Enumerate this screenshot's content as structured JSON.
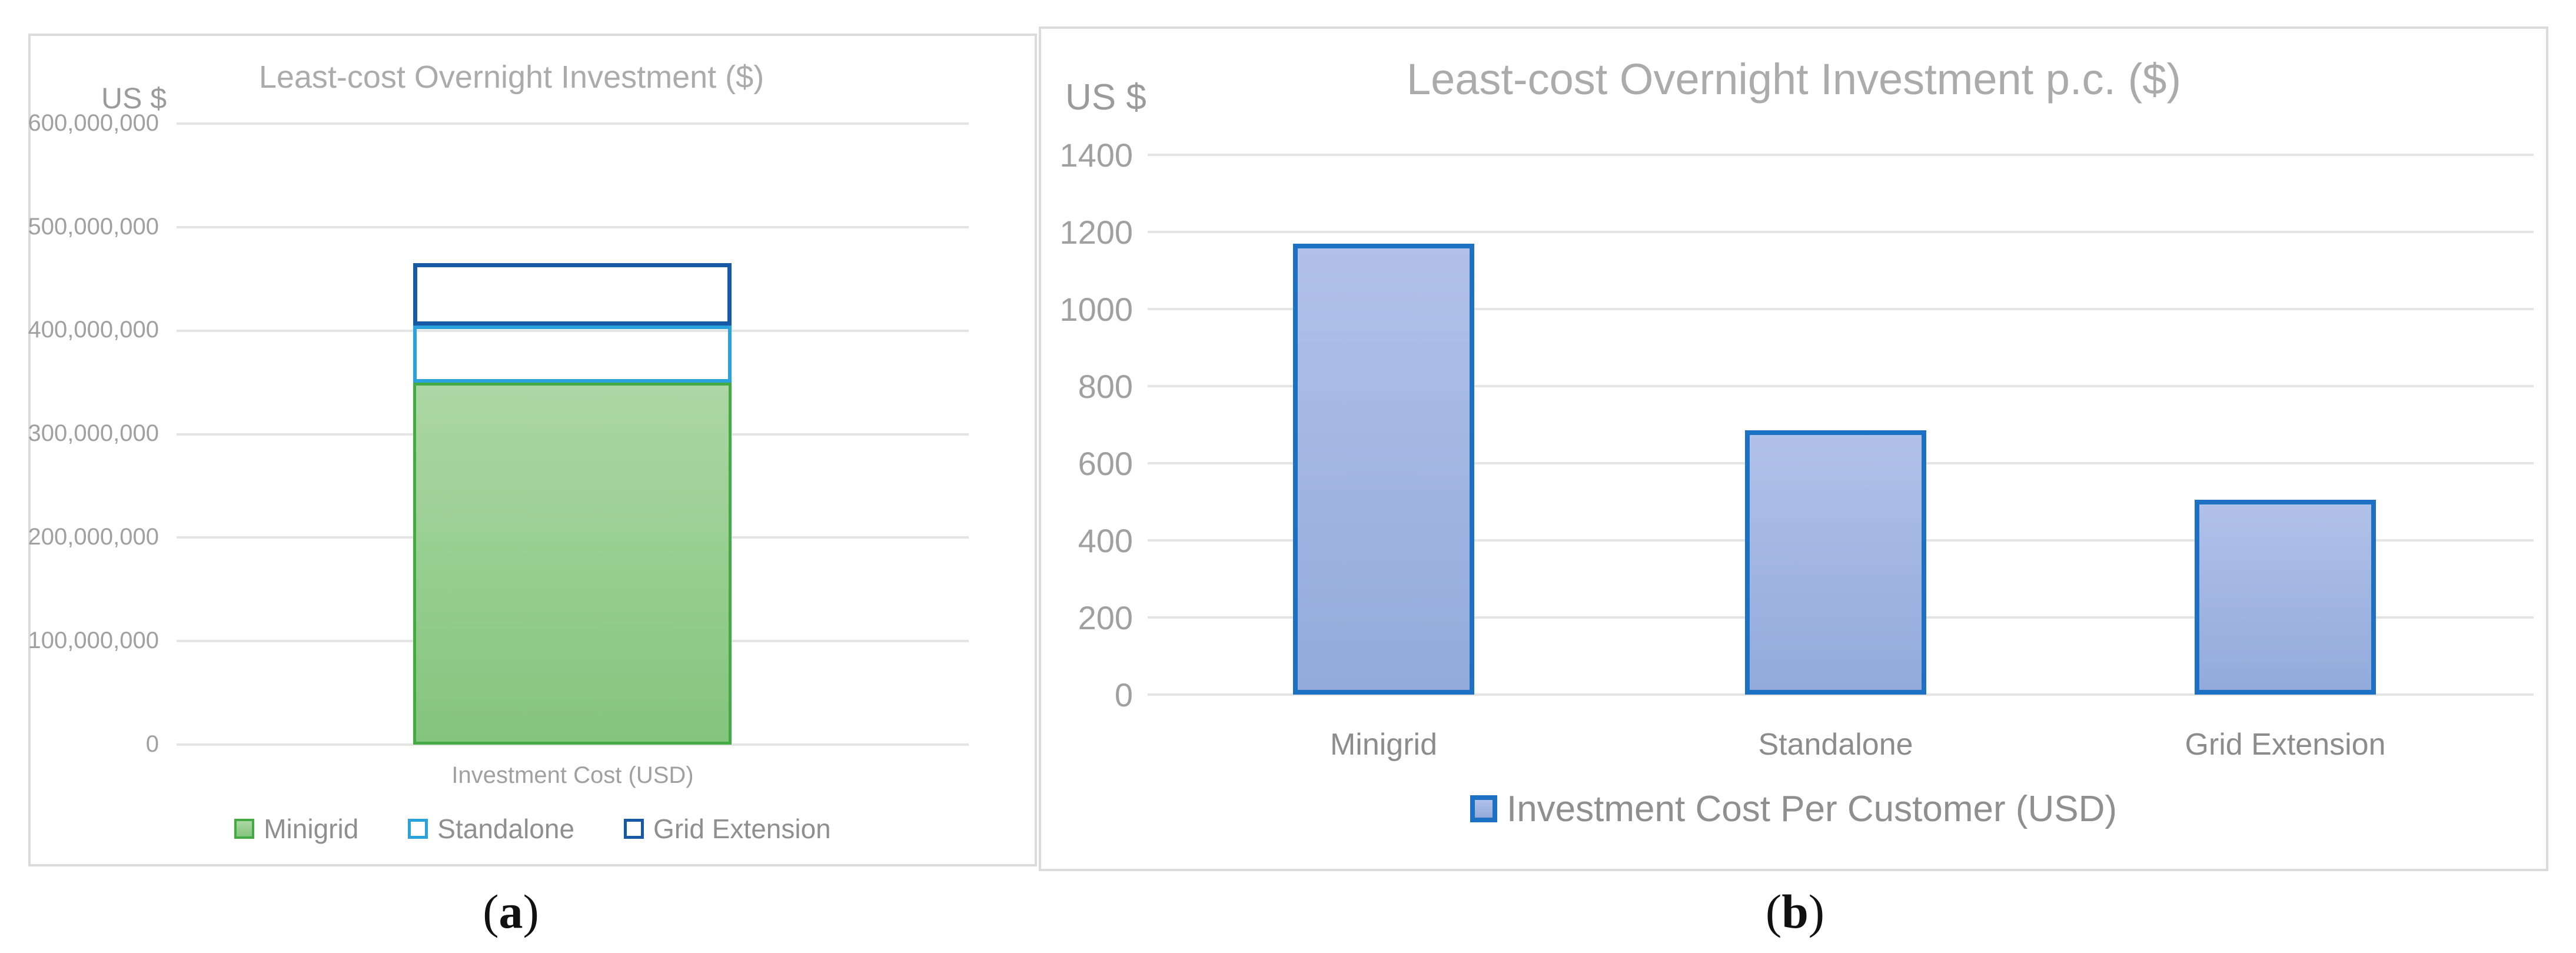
{
  "page": {
    "background": "#FFFFFF"
  },
  "colors": {
    "panel_border": "#DBDBDB",
    "gridline": "#E4E4E4",
    "title_text": "#ABABAB",
    "tick_text": "#A0A0A0",
    "legend_text": "#8F8F8F",
    "minigrid_green_border": "#43AB43",
    "standalone_blue_border": "#2AA2DE",
    "grid_extension_navy_border": "#1759A4",
    "pc_bar_blue_border": "#1D71C4"
  },
  "captions": {
    "a": {
      "open": "(",
      "letter": "a",
      "close": ")"
    },
    "b": {
      "open": "(",
      "letter": "b",
      "close": ")"
    }
  },
  "chart_data": [
    {
      "type": "bar",
      "stacked": true,
      "title": "Least-cost Overnight Investment ($)",
      "y_axis_unit": "US $",
      "x_axis_category_label": "Investment Cost (USD)",
      "categories": [
        "Investment Cost (USD)"
      ],
      "ylim": [
        0,
        600000000
      ],
      "ytick_step": 100000000,
      "ytick_labels": [
        "0",
        "100,000,000",
        "200,000,000",
        "300,000,000",
        "400,000,000",
        "500,000,000",
        "600,000,000"
      ],
      "grid": true,
      "legend_position": "bottom",
      "series": [
        {
          "name": "Minigrid",
          "values": [
            350000000
          ],
          "fill_top": "#ACD7A4",
          "fill_bottom": "#84C57E",
          "border": "#43AB43"
        },
        {
          "name": "Standalone",
          "values": [
            55000000
          ],
          "fill": "none",
          "border": "#2AA2DE"
        },
        {
          "name": "Grid Extension",
          "values": [
            60000000
          ],
          "fill": "none",
          "border": "#1759A4"
        }
      ]
    },
    {
      "type": "bar",
      "stacked": false,
      "title": "Least-cost Overnight Investment p.c. ($)",
      "y_axis_unit": "US $",
      "categories": [
        "Minigrid",
        "Standalone",
        "Grid Extension"
      ],
      "ylim": [
        0,
        1400
      ],
      "ytick_step": 200,
      "ytick_labels": [
        "0",
        "200",
        "400",
        "600",
        "800",
        "1000",
        "1200",
        "1400"
      ],
      "grid": true,
      "legend_position": "bottom",
      "series": [
        {
          "name": "Investment Cost Per Customer (USD)",
          "values": [
            1170,
            685,
            505
          ],
          "fill_top": "#B1C1E9",
          "fill_bottom": "#93AADB",
          "border": "#1D71C4"
        }
      ]
    }
  ]
}
